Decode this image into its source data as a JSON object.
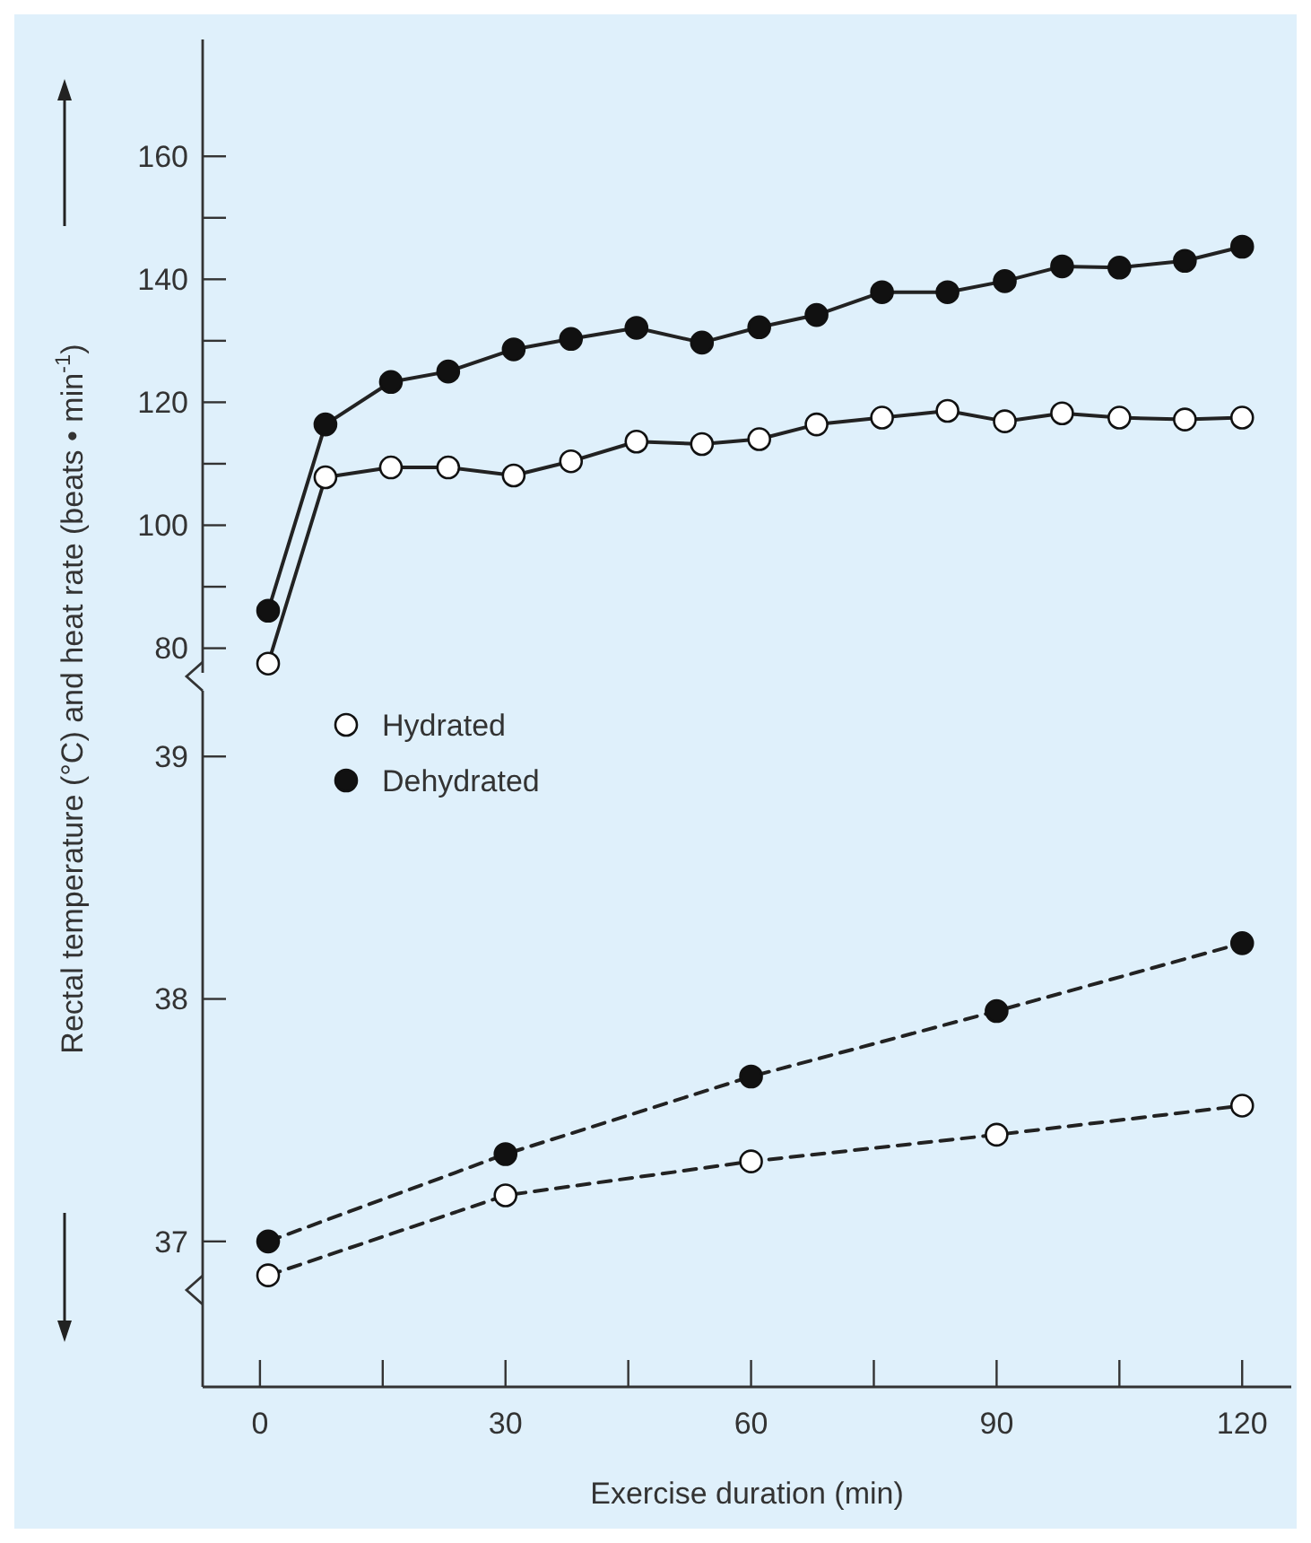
{
  "chart_data": [
    {
      "type": "line",
      "ylabel": "Rectal temperature (°C) and heat rate (beats • min$^{-1}$)",
      "x": [
        1,
        8,
        16,
        23,
        31,
        38,
        46,
        54,
        61,
        68,
        76,
        84,
        91,
        98,
        105,
        113,
        120
      ],
      "xlim": [
        -7,
        126
      ],
      "ylim": [
        76,
        179
      ],
      "yticks": [
        80,
        {
          "value": 90,
          "label": null
        },
        100,
        {
          "value": 110,
          "label": null
        },
        120,
        {
          "value": 130,
          "label": null
        },
        140,
        {
          "value": 150,
          "label": null
        },
        160
      ],
      "tick_labels": "y",
      "marker": "circle",
      "line_style": "solid",
      "grid": false,
      "series": [
        {
          "color": "#ffffff",
          "values": [
            77.5,
            107.8,
            109.4,
            109.4,
            108.1,
            110.4,
            113.6,
            113.2,
            114,
            116.4,
            117.5,
            118.6,
            116.9,
            118.2,
            117.5,
            117.2,
            117.5
          ]
        },
        {
          "color": "#111111",
          "values": [
            86.1,
            116.4,
            123.3,
            125,
            128.6,
            130.3,
            132.1,
            129.7,
            132.2,
            134.2,
            137.9,
            137.9,
            139.7,
            142.1,
            141.9,
            143,
            145.3
          ]
        }
      ]
    },
    {
      "type": "line",
      "xlabel": "Exercise duration (min)",
      "x": [
        1,
        30,
        60,
        90,
        120
      ],
      "xlim": [
        -7,
        126
      ],
      "xticks": [
        0,
        {
          "value": 15,
          "label": null
        },
        30,
        {
          "value": 45,
          "label": null
        },
        60,
        {
          "value": 75,
          "label": null
        },
        90,
        {
          "value": 105,
          "label": null
        },
        120
      ],
      "ylim": [
        36.4,
        39.16
      ],
      "yticks": [
        37,
        38,
        39
      ],
      "marker": "circle",
      "line_style": "dashed",
      "grid": false,
      "legend": "top left",
      "series": [
        {
          "name": "Hydrated",
          "color": "#ffffff",
          "values": [
            36.86,
            37.19,
            37.33,
            37.44,
            37.56
          ]
        },
        {
          "name": "Dehydrated",
          "color": "#111111",
          "values": [
            37.0,
            37.36,
            37.68,
            37.95,
            38.23
          ]
        }
      ]
    }
  ]
}
